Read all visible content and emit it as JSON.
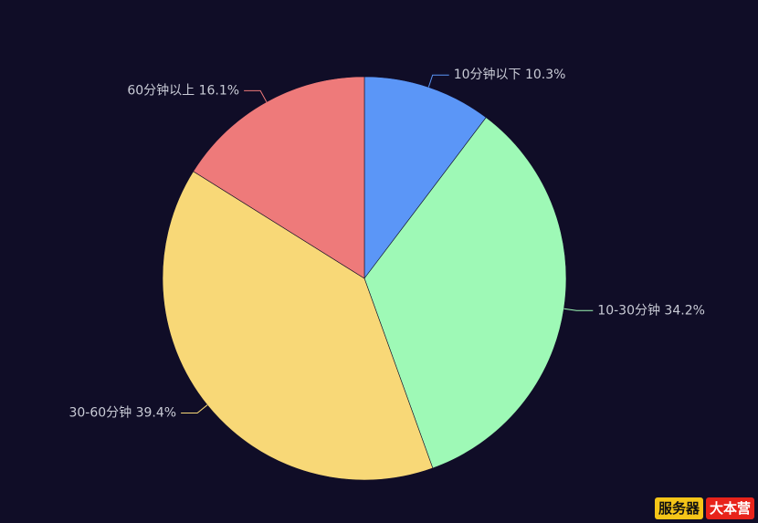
{
  "chart_data": {
    "type": "pie",
    "slices": [
      {
        "label": "10分钟以下",
        "value": 10.3,
        "percent_label": "10.3%",
        "color": "#5b96f7"
      },
      {
        "label": "10-30分钟",
        "value": 34.2,
        "percent_label": "34.2%",
        "color": "#9ef9b6"
      },
      {
        "label": "30-60分钟",
        "value": 39.4,
        "percent_label": "39.4%",
        "color": "#f8d877"
      },
      {
        "label": "60分钟以上",
        "value": 16.1,
        "percent_label": "16.1%",
        "color": "#ee7a7a"
      }
    ],
    "start_angle": "12 o'clock",
    "direction": "clockwise",
    "label_color": "#c9cbd6",
    "background": "#100d27"
  },
  "watermark": {
    "part1": "服务器",
    "part2": "大本营"
  }
}
